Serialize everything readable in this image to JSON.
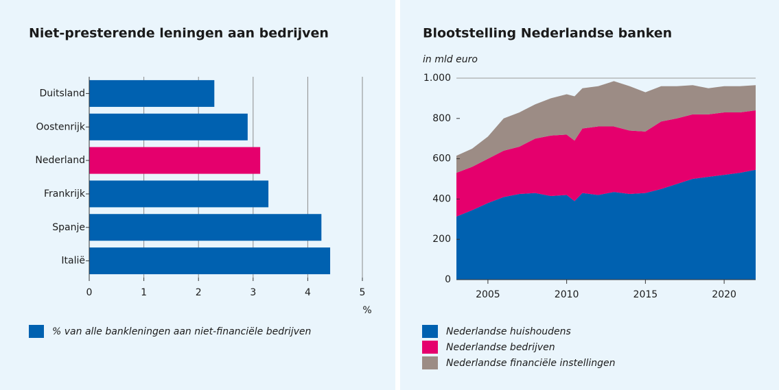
{
  "chart_data": [
    {
      "type": "barh",
      "title": "Niet-presterende leningen aan bedrijven",
      "categories": [
        "Duitsland",
        "Oostenrijk",
        "Nederland",
        "Frankrijk",
        "Spanje",
        "Italië"
      ],
      "values": [
        2.29,
        2.9,
        3.13,
        3.28,
        4.25,
        4.41
      ],
      "colors": [
        "#0061b0",
        "#0061b0",
        "#e5006d",
        "#0061b0",
        "#0061b0",
        "#0061b0"
      ],
      "xlim": [
        0,
        5
      ],
      "xticks": [
        0,
        1,
        2,
        3,
        4,
        5
      ],
      "xlabel": "%",
      "grid": true,
      "series": [
        {
          "name": "% van alle bankleningen aan niet-financiële bedrijven",
          "color": "#0061b0"
        }
      ]
    },
    {
      "type": "stacked_area",
      "title": "Blootstelling Nederlandse banken",
      "subtitle": "in mld euro",
      "x": [
        2003,
        2004,
        2005,
        2006,
        2007,
        2008,
        2009,
        2010,
        2010.5,
        2011,
        2012,
        2013,
        2014,
        2015,
        2016,
        2017,
        2018,
        2019,
        2020,
        2021,
        2022
      ],
      "series": [
        {
          "name": "Nederlandse huishoudens",
          "color": "#0061b0",
          "values": [
            313,
            345,
            380,
            410,
            425,
            430,
            415,
            420,
            390,
            430,
            420,
            435,
            425,
            430,
            450,
            475,
            500,
            510,
            520,
            530,
            545
          ]
        },
        {
          "name": "Nederlandse bedrijven",
          "color": "#e5006d",
          "values": [
            217,
            215,
            220,
            230,
            235,
            270,
            300,
            300,
            300,
            320,
            340,
            325,
            315,
            305,
            335,
            325,
            320,
            310,
            310,
            300,
            295
          ]
        },
        {
          "name": "Nederlandse financiële instellingen",
          "color": "#9c8c85",
          "values": [
            85,
            90,
            110,
            160,
            170,
            170,
            185,
            200,
            220,
            200,
            200,
            225,
            220,
            195,
            175,
            160,
            145,
            130,
            130,
            130,
            125
          ]
        }
      ],
      "xlim": [
        2003,
        2022
      ],
      "xticks": [
        2005,
        2010,
        2015,
        2020
      ],
      "ylim": [
        0,
        1000
      ],
      "yticks": [
        0,
        200,
        400,
        600,
        800,
        {
          "value": 1000,
          "label": "1.000"
        }
      ]
    }
  ]
}
